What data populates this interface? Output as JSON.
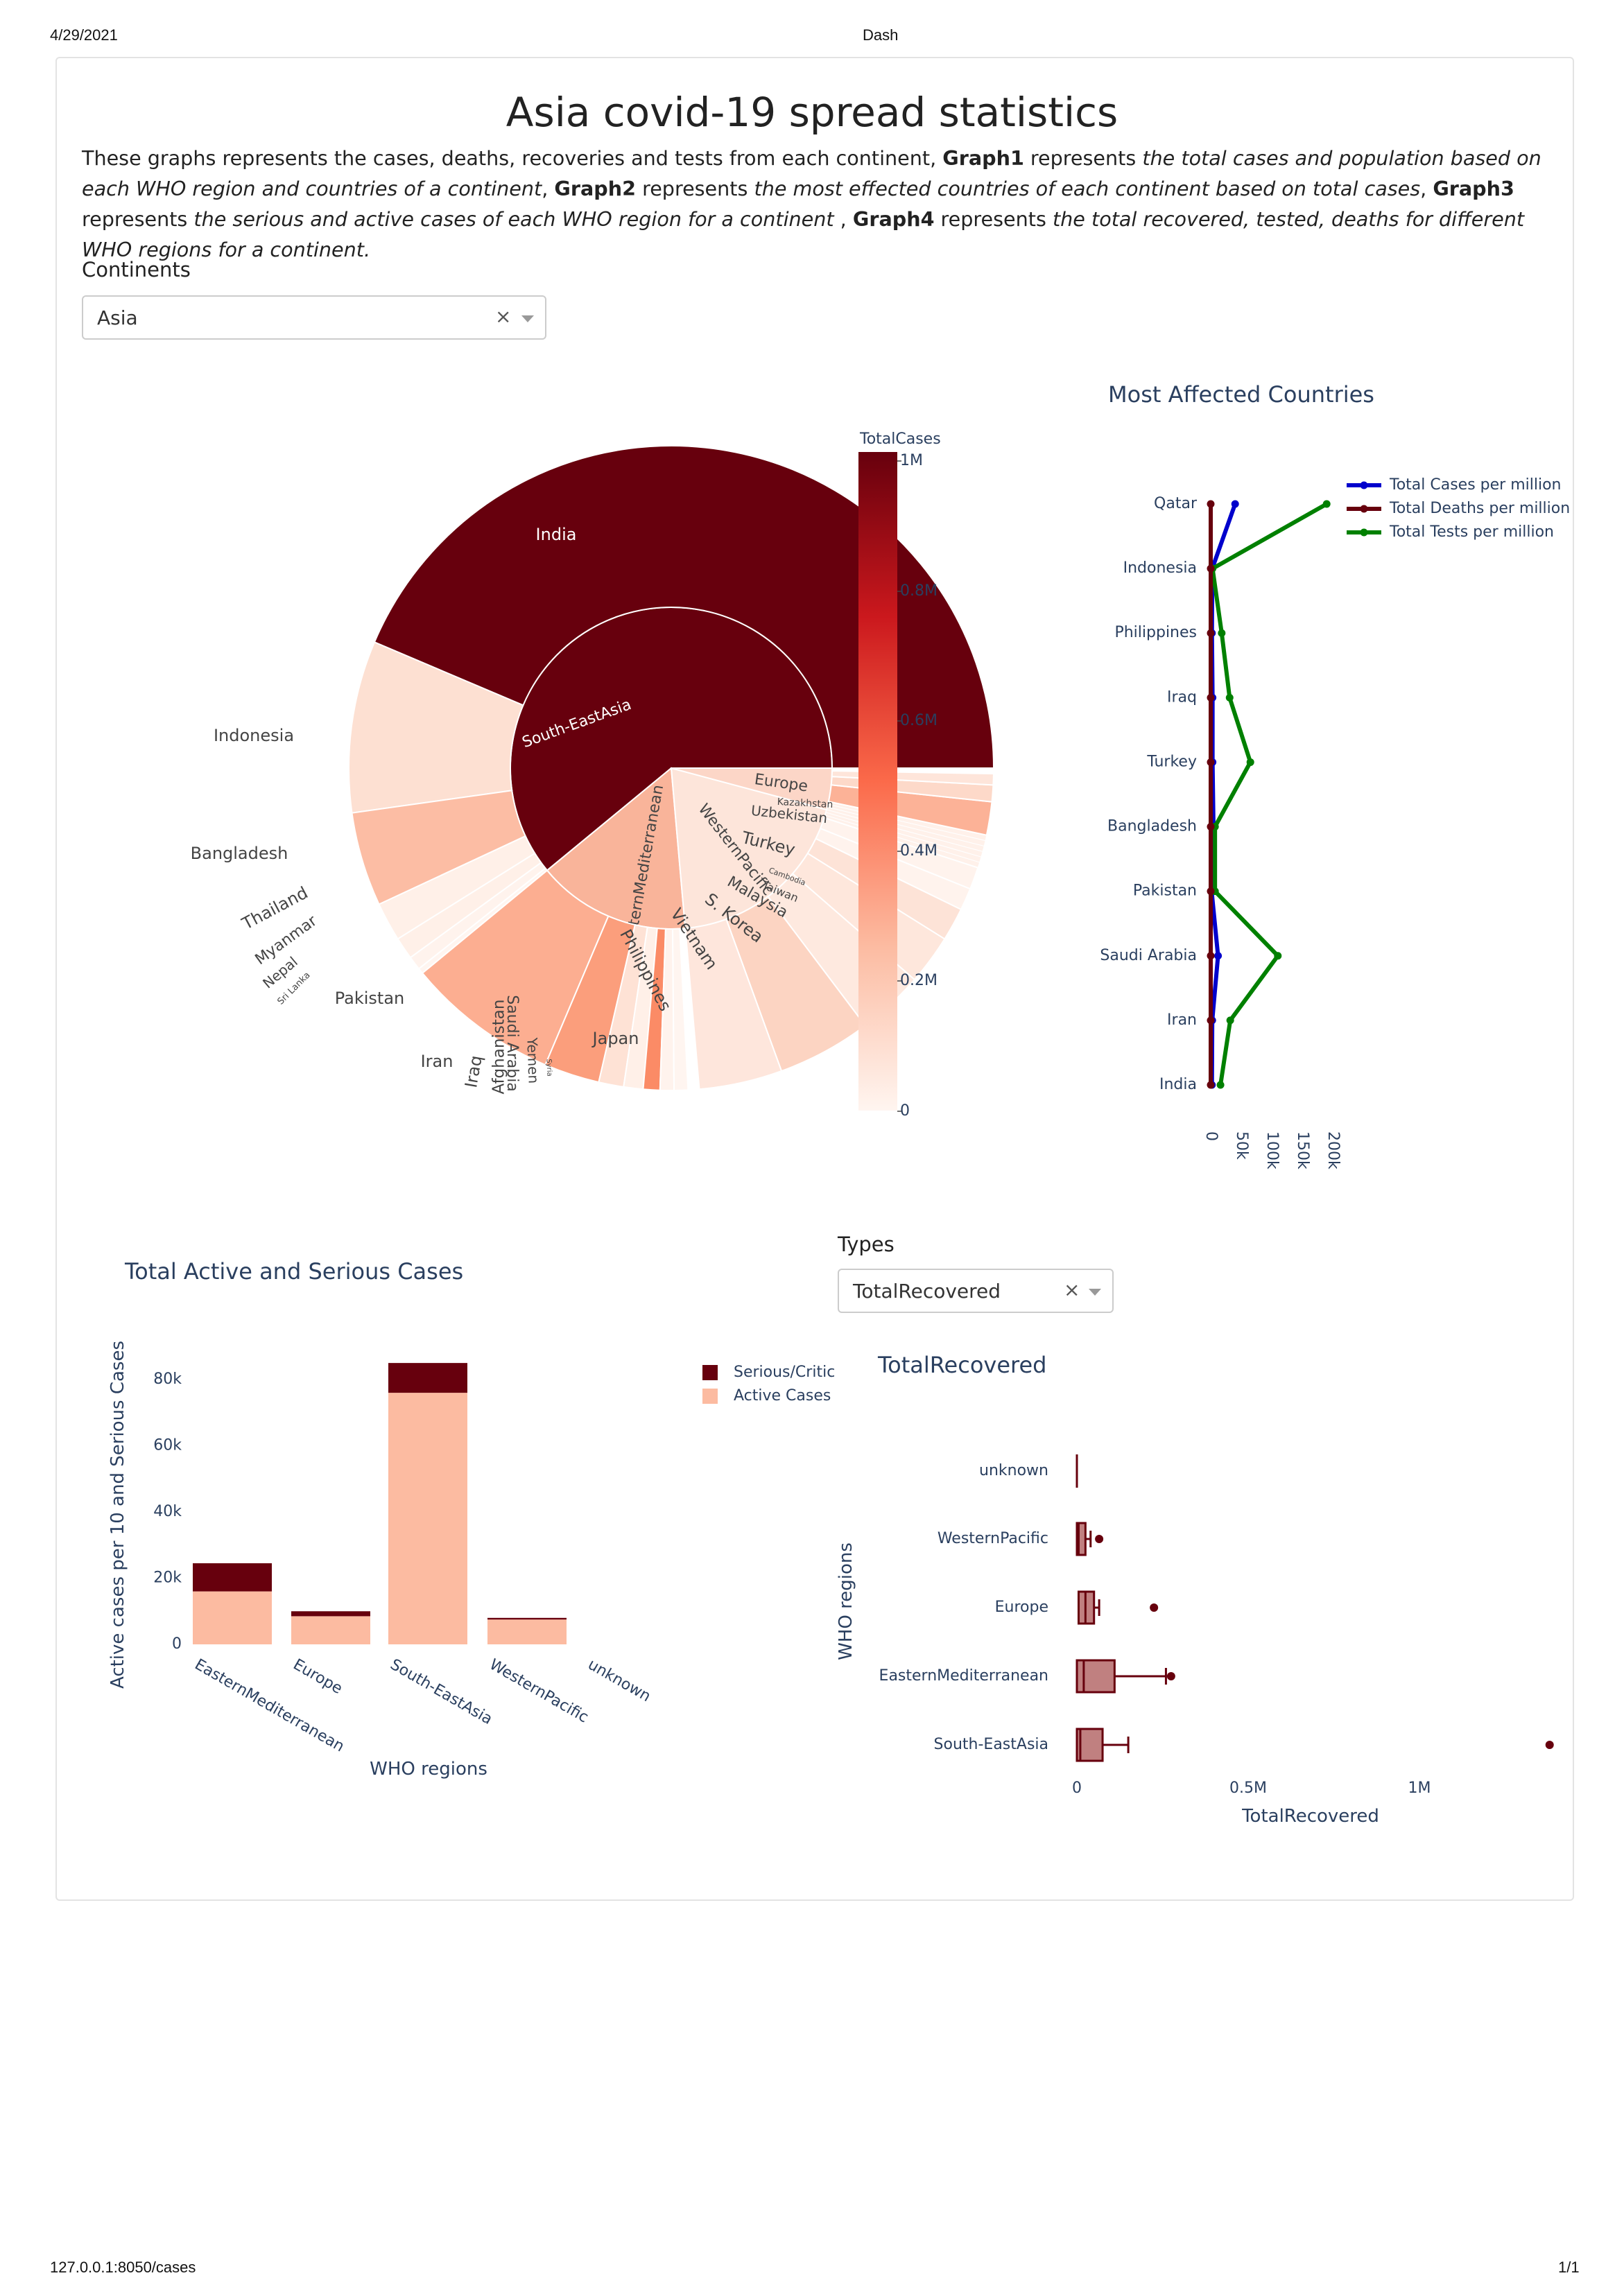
{
  "browser": {
    "date": "4/29/2021",
    "tab_title": "Dash",
    "url": "127.0.0.1:8050/cases",
    "page_count": "1/1"
  },
  "page": {
    "title": "Asia covid-19 spread statistics",
    "description": [
      {
        "t": "These graphs represents the cases, deaths, recoveries and tests from each continent, ",
        "s": "n"
      },
      {
        "t": "Graph1",
        "s": "b"
      },
      {
        "t": " represents ",
        "s": "n"
      },
      {
        "t": "the total cases and population based on each WHO region and countries of a continent",
        "s": "i"
      },
      {
        "t": ", ",
        "s": "n"
      },
      {
        "t": "Graph2",
        "s": "b"
      },
      {
        "t": " represents ",
        "s": "n"
      },
      {
        "t": "the most effected countries of each continent based on total cases",
        "s": "i"
      },
      {
        "t": ", ",
        "s": "n"
      },
      {
        "t": "Graph3",
        "s": "b"
      },
      {
        "t": " represents ",
        "s": "n"
      },
      {
        "t": "the serious and active cases of each WHO region for a continent",
        "s": "i"
      },
      {
        "t": " , ",
        "s": "n"
      },
      {
        "t": "Graph4",
        "s": "b"
      },
      {
        "t": " represents ",
        "s": "n"
      },
      {
        "t": "the total recovered, tested, deaths for different WHO regions for a continent.",
        "s": "i"
      }
    ]
  },
  "controls": {
    "continents_label": "Continents",
    "continents_value": "Asia",
    "types_label": "Types",
    "types_value": "TotalRecovered",
    "clear_glyph": "×"
  },
  "colors": {
    "dark_red": "#67000d",
    "blue": "#0000cc",
    "green": "#008000",
    "peach": "#fcbba1",
    "box_fill": "#c08080"
  },
  "chart_data": [
    {
      "type": "sunburst",
      "colorbar": {
        "title": "TotalCases",
        "ticks": [
          "1M",
          "0.8M",
          "0.6M",
          "0.4M",
          "0.2M",
          "0"
        ]
      },
      "regions": [
        {
          "name": "South-EastAsia",
          "countries": [
            "India",
            "Indonesia",
            "Bangladesh",
            "Thailand",
            "Myanmar",
            "Nepal",
            "Sri Lanka"
          ]
        },
        {
          "name": "EasternMediterranean",
          "countries": [
            "Pakistan",
            "Iran",
            "Iraq",
            "Afghanistan",
            "Saudi Arabia",
            "Yemen",
            "Syria"
          ]
        },
        {
          "name": "WesternPacific",
          "countries": [
            "Philippines",
            "Japan",
            "Vietnam",
            "S. Korea",
            "Malaysia",
            "Taiwan",
            "Cambodia"
          ]
        },
        {
          "name": "Europe",
          "countries": [
            "Turkey",
            "Uzbekistan",
            "Kazakhstan"
          ]
        }
      ]
    },
    {
      "type": "line",
      "title": "Most Affected Countries",
      "categories": [
        "India",
        "Iran",
        "Saudi Arabia",
        "Pakistan",
        "Bangladesh",
        "Turkey",
        "Iraq",
        "Philippines",
        "Indonesia",
        "Qatar"
      ],
      "xticks": [
        "0",
        "50k",
        "100k",
        "150k",
        "200k"
      ],
      "xlim": [
        0,
        200000
      ],
      "series": [
        {
          "name": "Total Cases per million",
          "values": [
            2000,
            2500,
            12000,
            1500,
            4500,
            3000,
            3000,
            2000,
            2500,
            40000
          ]
        },
        {
          "name": "Total Deaths per million",
          "values": [
            0,
            0,
            0,
            0,
            0,
            0,
            0,
            0,
            0,
            0
          ]
        },
        {
          "name": "Total Tests per million",
          "values": [
            16000,
            32000,
            110000,
            7000,
            7000,
            65000,
            31000,
            18000,
            3000,
            190000
          ]
        }
      ]
    },
    {
      "type": "bar",
      "title": "Total Active and Serious Cases",
      "xlabel": "WHO regions",
      "ylabel": "Active cases per 10 and Serious Cases",
      "categories": [
        "EasternMediterranean",
        "Europe",
        "South-EastAsia",
        "WesternPacific",
        "unknown"
      ],
      "yticks": [
        "0",
        "20k",
        "40k",
        "60k",
        "80k"
      ],
      "ylim": [
        0,
        90000
      ],
      "series": [
        {
          "name": "Active Cases",
          "values": [
            16000,
            8500,
            76000,
            7500,
            0
          ]
        },
        {
          "name": "Serious/Critic",
          "values": [
            8500,
            1500,
            9000,
            500,
            0
          ]
        }
      ]
    },
    {
      "type": "box",
      "title": "TotalRecovered",
      "xlabel": "TotalRecovered",
      "ylabel": "WHO regions",
      "categories": [
        "South-EastAsia",
        "EasternMediterranean",
        "Europe",
        "WesternPacific",
        "unknown"
      ],
      "xticks": [
        "0",
        "0.5M",
        "1M"
      ],
      "xlim": [
        0,
        1400000
      ],
      "boxes": [
        {
          "min": 0,
          "q1": 0,
          "median": 10000,
          "q3": 75000,
          "max": 150000,
          "outliers": [
            1380000
          ]
        },
        {
          "min": 0,
          "q1": 0,
          "median": 20000,
          "q3": 110000,
          "max": 260000,
          "outliers": [
            275000
          ]
        },
        {
          "min": 0,
          "q1": 5000,
          "median": 25000,
          "q3": 50000,
          "max": 65000,
          "outliers": [
            225000
          ]
        },
        {
          "min": 0,
          "q1": 0,
          "median": 5000,
          "q3": 25000,
          "max": 40000,
          "outliers": [
            65000
          ]
        },
        {
          "min": 0,
          "q1": 0,
          "median": 0,
          "q3": 0,
          "max": 0,
          "outliers": []
        }
      ]
    }
  ]
}
